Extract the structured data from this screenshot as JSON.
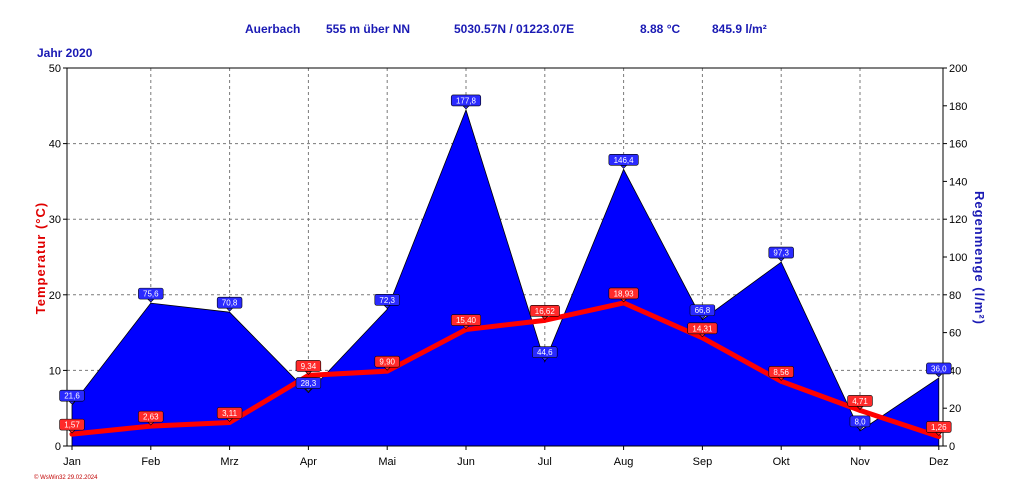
{
  "header": {
    "station": "Auerbach",
    "elevation": "555 m über NN",
    "coordinates": "5030.57N / 01223.07E",
    "mean_temp": "8.88 °C",
    "total_precip": "845.9 l/m²",
    "year": "Jahr  2020"
  },
  "footer": "© WsWin32  29.02.2024",
  "colors": {
    "temperature": "#ff0000",
    "precipitation": "#0000ff",
    "header_text": "#1a1ab4",
    "temp_label_bg": "#ff2a2a",
    "rain_label_bg": "#2a2aff"
  },
  "chart_data": {
    "type": "line",
    "categories": [
      "Jan",
      "Feb",
      "Mrz",
      "Apr",
      "Mai",
      "Jun",
      "Jul",
      "Aug",
      "Sep",
      "Okt",
      "Nov",
      "Dez"
    ],
    "ylabel": "Temperatur  (°C)",
    "y2label": "Regenmenge  (l/m²)",
    "ylim": [
      0,
      50
    ],
    "y2lim": [
      0,
      200
    ],
    "yticks": [
      "0",
      "10",
      "20",
      "30",
      "40",
      "50"
    ],
    "y2ticks": [
      "0",
      "20",
      "40",
      "60",
      "80",
      "100",
      "120",
      "140",
      "160",
      "180",
      "200"
    ],
    "grid": true,
    "series": [
      {
        "name": "Temperatur",
        "type": "line",
        "axis": "left",
        "values": [
          1.57,
          2.63,
          3.11,
          9.34,
          9.9,
          15.4,
          16.62,
          18.93,
          14.31,
          8.56,
          4.71,
          1.26
        ],
        "labels": [
          "1,57",
          "2,63",
          "3,11",
          "9,34",
          "9,90",
          "15,40",
          "16,62",
          "18,93",
          "14,31",
          "8,56",
          "4,71",
          "1,26"
        ]
      },
      {
        "name": "Regenmenge",
        "type": "area",
        "axis": "right",
        "values": [
          21.6,
          75.6,
          70.8,
          28.3,
          72.3,
          177.8,
          44.6,
          146.4,
          66.8,
          97.3,
          8.0,
          36.0
        ],
        "labels": [
          "21,6",
          "75,6",
          "70,8",
          "28,3",
          "72,3",
          "177,8",
          "44,6",
          "146,4",
          "66,8",
          "97,3",
          "8,0",
          "36,0"
        ]
      }
    ]
  }
}
